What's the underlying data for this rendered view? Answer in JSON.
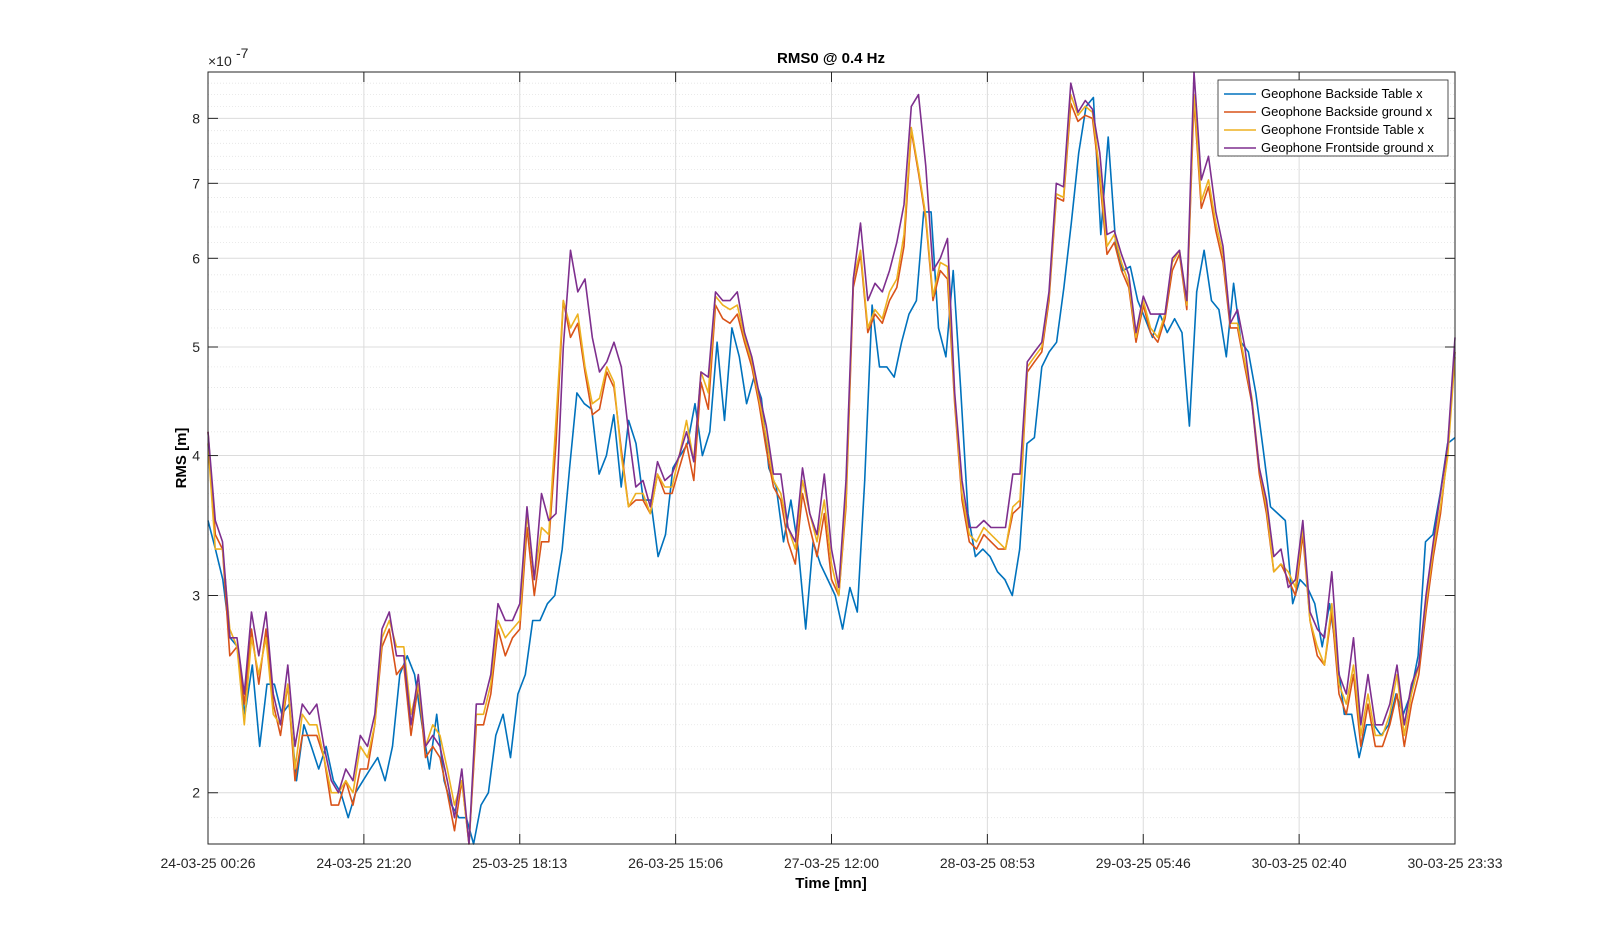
{
  "chart_data": {
    "type": "line",
    "title": "RMS0 @ 0.4 Hz",
    "xlabel": "Time [mn]",
    "ylabel": "RMS [m]",
    "y_exponent_label": "×10",
    "y_exponent_power": "-7",
    "y_scale": "log",
    "ylim": [
      1.8,
      8.8
    ],
    "xlim": [
      0,
      8
    ],
    "grid": true,
    "legend_position": "top-right",
    "x_tick_labels": [
      "24-03-25 00:26",
      "24-03-25 21:20",
      "25-03-25 18:13",
      "26-03-25 15:06",
      "27-03-25 12:00",
      "28-03-25 08:53",
      "29-03-25 05:46",
      "30-03-25 02:40",
      "30-03-25 23:33"
    ],
    "y_ticks": [
      2,
      3,
      4,
      5,
      6,
      7,
      8
    ],
    "y_tick_labels": [
      "2",
      "3",
      "4",
      "5",
      "6",
      "7",
      "8"
    ],
    "series": [
      {
        "name": "Geophone Backside Table x",
        "color": "#0072BD",
        "values": [
          3.5,
          3.3,
          3.1,
          2.75,
          2.7,
          2.35,
          2.6,
          2.2,
          2.5,
          2.5,
          2.35,
          2.4,
          2.05,
          2.3,
          2.2,
          2.1,
          2.2,
          2.05,
          2,
          1.9,
          2,
          2.05,
          2.1,
          2.15,
          2.05,
          2.2,
          2.55,
          2.65,
          2.55,
          2.3,
          2.1,
          2.35,
          2.05,
          1.95,
          1.9,
          1.9,
          1.8,
          1.95,
          2,
          2.25,
          2.35,
          2.15,
          2.45,
          2.55,
          2.85,
          2.85,
          2.95,
          3,
          3.3,
          3.9,
          4.55,
          4.45,
          4.4,
          3.85,
          4,
          4.35,
          3.75,
          4.3,
          4.1,
          3.65,
          3.65,
          3.25,
          3.4,
          3.9,
          4,
          4.1,
          4.45,
          4,
          4.2,
          5.05,
          4.3,
          5.2,
          4.9,
          4.45,
          4.7,
          4.5,
          3.9,
          3.75,
          3.35,
          3.65,
          3.3,
          2.8,
          3.35,
          3.2,
          3.1,
          3,
          2.8,
          3.05,
          2.9,
          3.8,
          5.45,
          4.8,
          4.8,
          4.7,
          5.05,
          5.35,
          5.5,
          6.6,
          6.6,
          5.2,
          4.9,
          5.85,
          4.6,
          3.55,
          3.25,
          3.3,
          3.25,
          3.15,
          3.1,
          3,
          3.3,
          4.1,
          4.15,
          4.8,
          4.95,
          5.05,
          5.65,
          6.45,
          7.45,
          8.2,
          8.35,
          6.3,
          7.7,
          6.2,
          5.85,
          5.9,
          5.5,
          5.3,
          5.1,
          5.35,
          5.15,
          5.3,
          5.15,
          4.25,
          5.6,
          6.1,
          5.5,
          5.4,
          4.9,
          5.7,
          5.05,
          4.95,
          4.55,
          4.05,
          3.6,
          3.55,
          3.5,
          2.95,
          3.1,
          3.05,
          2.95,
          2.7,
          2.95,
          2.65,
          2.35,
          2.35,
          2.15,
          2.3,
          2.3,
          2.25,
          2.3,
          2.45,
          2.35,
          2.45,
          2.65,
          3.35,
          3.4,
          3.7,
          4.1,
          4.15
        ]
      },
      {
        "name": "Geophone Backside ground x",
        "color": "#D95319",
        "values": [
          4.2,
          3.4,
          3.3,
          2.65,
          2.7,
          2.4,
          2.8,
          2.5,
          2.8,
          2.4,
          2.25,
          2.5,
          2.05,
          2.25,
          2.25,
          2.25,
          2.15,
          1.95,
          1.95,
          2.05,
          1.95,
          2.1,
          2.1,
          2.3,
          2.7,
          2.8,
          2.55,
          2.6,
          2.25,
          2.5,
          2.15,
          2.2,
          2.15,
          2,
          1.85,
          2.05,
          1.75,
          2.3,
          2.3,
          2.45,
          2.8,
          2.65,
          2.75,
          2.8,
          3.45,
          3,
          3.35,
          3.35,
          4.1,
          5.5,
          5.1,
          5.25,
          4.75,
          4.35,
          4.4,
          4.75,
          4.6,
          4.05,
          3.6,
          3.65,
          3.65,
          3.55,
          3.85,
          3.7,
          3.7,
          3.9,
          4.1,
          3.8,
          4.65,
          4.4,
          5.45,
          5.3,
          5.25,
          5.35,
          5.05,
          4.8,
          4.45,
          4.05,
          3.75,
          3.65,
          3.35,
          3.2,
          3.7,
          3.45,
          3.25,
          3.55,
          3.1,
          3.0,
          3.6,
          5.65,
          6.05,
          5.15,
          5.35,
          5.25,
          5.5,
          5.65,
          6.15,
          7.8,
          7.15,
          6.5,
          5.5,
          5.85,
          5.75,
          4.45,
          3.65,
          3.35,
          3.3,
          3.4,
          3.35,
          3.3,
          3.3,
          3.55,
          3.6,
          4.75,
          4.85,
          4.95,
          5.5,
          6.8,
          6.75,
          8.25,
          7.95,
          8.05,
          8.0,
          7.05,
          6.05,
          6.2,
          5.85,
          5.65,
          5.05,
          5.45,
          5.15,
          5.05,
          5.3,
          5.85,
          6.05,
          5.4,
          8.3,
          6.65,
          6.95,
          6.35,
          5.95,
          5.2,
          5.2,
          4.8,
          4.45,
          3.85,
          3.55,
          3.15,
          3.2,
          3.1,
          3.0,
          3.4,
          2.85,
          2.65,
          2.6,
          2.9,
          2.45,
          2.35,
          2.55,
          2.2,
          2.4,
          2.2,
          2.2,
          2.3,
          2.45,
          2.2,
          2.4,
          2.55,
          2.9,
          3.25,
          3.55,
          4.05,
          4.95
        ]
      },
      {
        "name": "Geophone Frontside Table x",
        "color": "#EDB120",
        "values": [
          4.1,
          3.3,
          3.3,
          2.8,
          2.7,
          2.3,
          2.75,
          2.55,
          2.75,
          2.35,
          2.3,
          2.5,
          2.1,
          2.35,
          2.3,
          2.3,
          2.15,
          2,
          2,
          2.05,
          2,
          2.2,
          2.15,
          2.3,
          2.75,
          2.85,
          2.7,
          2.7,
          2.35,
          2.5,
          2.2,
          2.3,
          2.25,
          2.1,
          1.95,
          2.05,
          1.78,
          2.35,
          2.35,
          2.5,
          2.85,
          2.75,
          2.8,
          2.85,
          3.55,
          3.1,
          3.45,
          3.4,
          4.3,
          5.5,
          5.2,
          5.35,
          4.8,
          4.45,
          4.5,
          4.8,
          4.65,
          4.0,
          3.6,
          3.7,
          3.7,
          3.55,
          3.85,
          3.75,
          3.75,
          4.0,
          4.3,
          3.95,
          4.75,
          4.55,
          5.55,
          5.45,
          5.4,
          5.45,
          5.1,
          4.85,
          4.5,
          4.15,
          3.8,
          3.7,
          3.45,
          3.3,
          3.8,
          3.55,
          3.35,
          3.65,
          3.2,
          3.0,
          3.65,
          5.75,
          6.1,
          5.2,
          5.4,
          5.3,
          5.6,
          5.75,
          6.3,
          7.85,
          7.2,
          6.55,
          5.55,
          5.95,
          5.9,
          4.5,
          3.7,
          3.4,
          3.35,
          3.45,
          3.4,
          3.35,
          3.3,
          3.6,
          3.65,
          4.8,
          4.9,
          5.0,
          5.55,
          6.85,
          6.8,
          8.4,
          8.05,
          8.2,
          8.1,
          7.15,
          6.15,
          6.3,
          5.95,
          5.7,
          5.1,
          5.5,
          5.2,
          5.1,
          5.35,
          5.95,
          6.1,
          5.45,
          8.4,
          6.75,
          7.05,
          6.45,
          6.05,
          5.25,
          5.25,
          4.85,
          4.5,
          3.9,
          3.6,
          3.15,
          3.2,
          3.15,
          3.05,
          3.45,
          2.85,
          2.7,
          2.6,
          2.95,
          2.5,
          2.4,
          2.6,
          2.25,
          2.45,
          2.25,
          2.25,
          2.35,
          2.55,
          2.25,
          2.45,
          2.6,
          2.95,
          3.3,
          3.6,
          4.0,
          4.9
        ]
      },
      {
        "name": "Geophone Frontside ground x",
        "color": "#7E2F8E",
        "values": [
          4.2,
          3.5,
          3.35,
          2.75,
          2.75,
          2.45,
          2.9,
          2.65,
          2.9,
          2.45,
          2.3,
          2.6,
          2.2,
          2.4,
          2.35,
          2.4,
          2.2,
          2.05,
          2,
          2.1,
          2.05,
          2.25,
          2.2,
          2.35,
          2.8,
          2.9,
          2.65,
          2.65,
          2.3,
          2.55,
          2.2,
          2.25,
          2.2,
          2.05,
          1.9,
          2.1,
          1.8,
          2.4,
          2.4,
          2.55,
          2.95,
          2.85,
          2.85,
          2.95,
          3.6,
          3.1,
          3.7,
          3.5,
          3.55,
          5.0,
          6.1,
          5.6,
          5.75,
          5.1,
          4.75,
          4.85,
          5.05,
          4.8,
          4.2,
          3.75,
          3.8,
          3.6,
          3.95,
          3.8,
          3.85,
          4.0,
          4.2,
          3.95,
          4.75,
          4.7,
          5.6,
          5.5,
          5.5,
          5.6,
          5.15,
          4.9,
          4.55,
          4.25,
          3.85,
          3.85,
          3.45,
          3.35,
          3.9,
          3.55,
          3.4,
          3.85,
          3.3,
          3.05,
          3.8,
          5.75,
          6.45,
          5.5,
          5.7,
          5.6,
          5.85,
          6.2,
          6.7,
          8.2,
          8.4,
          7.25,
          5.85,
          6.0,
          6.25,
          4.55,
          3.8,
          3.45,
          3.45,
          3.5,
          3.45,
          3.45,
          3.45,
          3.85,
          3.85,
          4.85,
          4.95,
          5.05,
          5.6,
          7.0,
          6.95,
          8.6,
          8.1,
          8.3,
          8.15,
          7.45,
          6.3,
          6.35,
          6.05,
          5.8,
          5.15,
          5.55,
          5.35,
          5.35,
          5.35,
          6.0,
          6.1,
          5.5,
          8.9,
          7.05,
          7.4,
          6.6,
          6.15,
          5.25,
          5.4,
          5.0,
          4.45,
          3.9,
          3.65,
          3.25,
          3.3,
          3.05,
          3.1,
          3.5,
          2.9,
          2.8,
          2.75,
          3.15,
          2.55,
          2.45,
          2.75,
          2.3,
          2.55,
          2.3,
          2.3,
          2.4,
          2.6,
          2.3,
          2.5,
          2.6,
          3.0,
          3.35,
          3.7,
          4.1,
          5.1
        ]
      }
    ]
  }
}
